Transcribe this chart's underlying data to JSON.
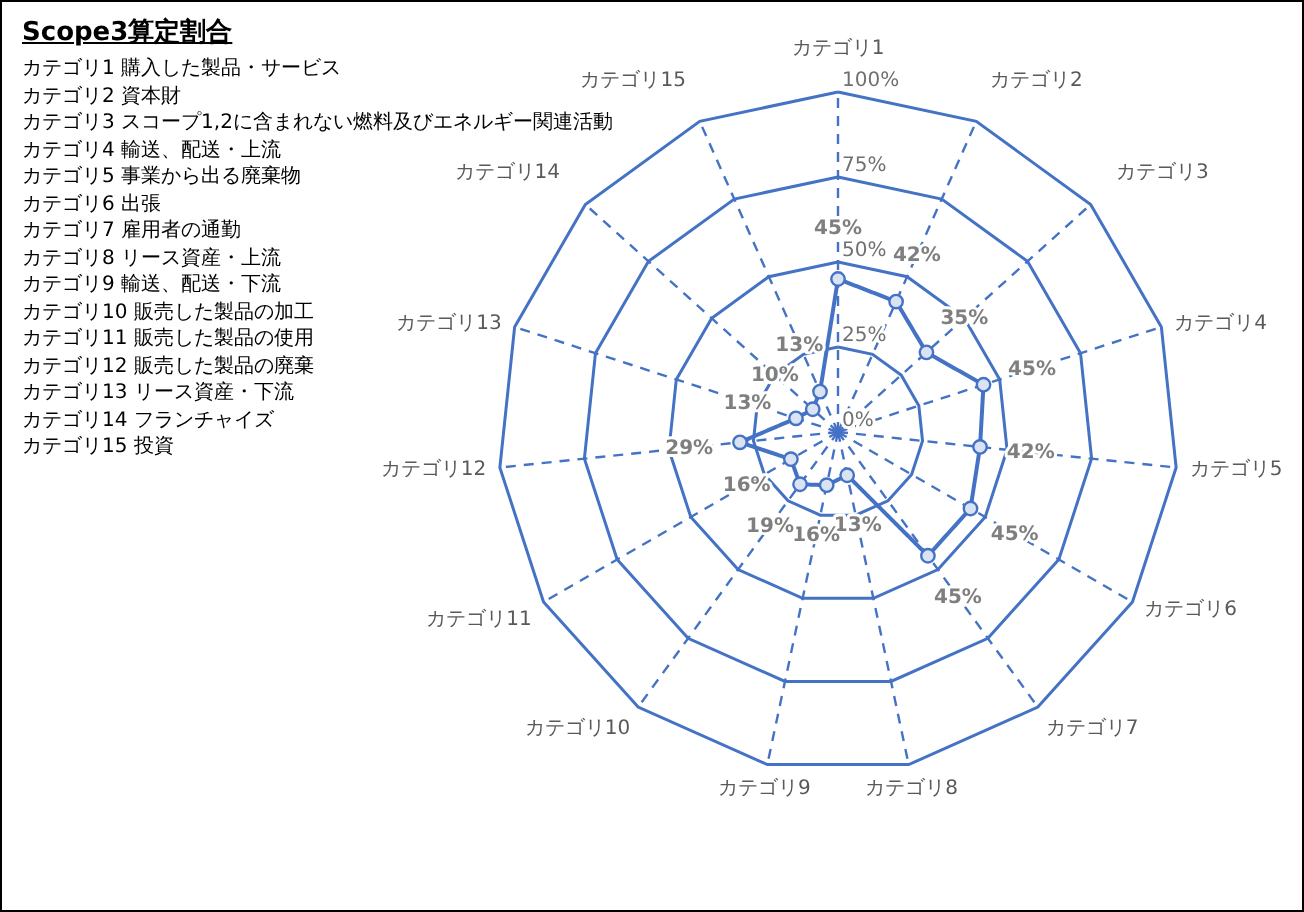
{
  "chart_data": {
    "type": "radar",
    "title": "Scope3算定割合",
    "categories": [
      "カテゴリ1",
      "カテゴリ2",
      "カテゴリ3",
      "カテゴリ4",
      "カテゴリ5",
      "カテゴリ6",
      "カテゴリ7",
      "カテゴリ8",
      "カテゴリ9",
      "カテゴリ10",
      "カテゴリ11",
      "カテゴリ12",
      "カテゴリ13",
      "カテゴリ14",
      "カテゴリ15"
    ],
    "series": [
      {
        "color": "#4472c4",
        "values": [
          45,
          42,
          35,
          45,
          42,
          45,
          45,
          13,
          16,
          19,
          16,
          29,
          13,
          10,
          13
        ],
        "value_labels": [
          "45%",
          "42%",
          "35%",
          "45%",
          "42%",
          "45%",
          "45%",
          "13%",
          "16%",
          "19%",
          "16%",
          "29%",
          "13%",
          "10%",
          "13%"
        ]
      }
    ],
    "ylim": [
      0,
      100
    ],
    "yticks": [
      {
        "value": 0,
        "label": "0%"
      },
      {
        "value": 25,
        "label": "25%"
      },
      {
        "value": 50,
        "label": "50%"
      },
      {
        "value": 75,
        "label": "75%"
      },
      {
        "value": 100,
        "label": "100%"
      }
    ],
    "grid": true,
    "marker": "circle",
    "annotations": [
      "カテゴリ1  購入した製品・サービス",
      "カテゴリ2  資本財",
      "カテゴリ3  スコープ1,2に含まれない燃料及びエネルギー関連活動",
      "カテゴリ4  輸送、配送・上流",
      "カテゴリ5  事業から出る廃棄物",
      "カテゴリ6  出張",
      "カテゴリ7  雇用者の通勤",
      "カテゴリ8  リース資産・上流",
      "カテゴリ9  輸送、配送・下流",
      "カテゴリ10 販売した製品の加工",
      "カテゴリ11 販売した製品の使用",
      "カテゴリ12 販売した製品の廃棄",
      "カテゴリ13 リース資産・下流",
      "カテゴリ14 フランチャイズ",
      "カテゴリ15 投資"
    ]
  }
}
